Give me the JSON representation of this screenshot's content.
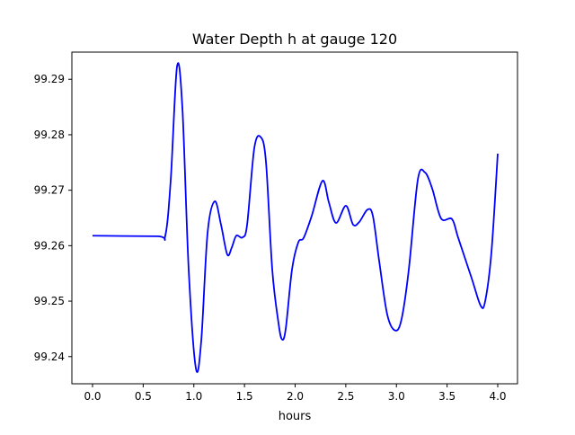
{
  "chart_data": {
    "type": "line",
    "title": "Water Depth h at gauge 120",
    "xlabel": "hours",
    "ylabel": "",
    "xlim": [
      -0.204,
      4.195
    ],
    "ylim": [
      99.2351,
      99.2949
    ],
    "xticks": [
      0.0,
      0.5,
      1.0,
      1.5,
      2.0,
      2.5,
      3.0,
      3.5,
      4.0
    ],
    "xtick_labels": [
      "0.0",
      "0.5",
      "1.0",
      "1.5",
      "2.0",
      "2.5",
      "3.0",
      "3.5",
      "4.0"
    ],
    "yticks": [
      99.24,
      99.25,
      99.26,
      99.27,
      99.28,
      99.29
    ],
    "ytick_labels": [
      "99.24",
      "99.25",
      "99.26",
      "99.27",
      "99.28",
      "99.29"
    ],
    "grid": false,
    "series": [
      {
        "name": "h",
        "color": "#0000ff",
        "x": [
          0.0,
          0.639,
          0.718,
          0.772,
          0.834,
          0.887,
          0.949,
          1.02,
          1.073,
          1.135,
          1.206,
          1.268,
          1.33,
          1.375,
          1.419,
          1.481,
          1.526,
          1.596,
          1.659,
          1.712,
          1.774,
          1.836,
          1.871,
          1.907,
          1.969,
          2.031,
          2.084,
          2.164,
          2.27,
          2.333,
          2.404,
          2.501,
          2.572,
          2.634,
          2.714,
          2.767,
          2.829,
          2.909,
          2.989,
          3.051,
          3.122,
          3.211,
          3.282,
          3.353,
          3.441,
          3.548,
          3.61,
          3.743,
          3.831,
          3.876,
          3.938,
          4.0
        ],
        "y": [
          99.2618,
          99.2617,
          99.2618,
          99.2719,
          99.2923,
          99.2848,
          99.2557,
          99.2379,
          99.2428,
          99.2622,
          99.268,
          99.2638,
          99.2584,
          99.2597,
          99.2618,
          99.2615,
          99.2638,
          99.2775,
          99.2796,
          99.2751,
          99.2557,
          99.246,
          99.2431,
          99.245,
          99.2557,
          99.2606,
          99.2614,
          99.2654,
          99.2717,
          99.2678,
          99.2641,
          99.2672,
          99.2638,
          99.2643,
          99.2665,
          99.2654,
          99.2573,
          99.2476,
          99.2447,
          99.2468,
          99.2557,
          99.2719,
          99.2732,
          99.2703,
          99.2649,
          99.2648,
          99.2614,
          99.2541,
          99.2492,
          99.25,
          99.2589,
          99.2766
        ]
      }
    ]
  }
}
